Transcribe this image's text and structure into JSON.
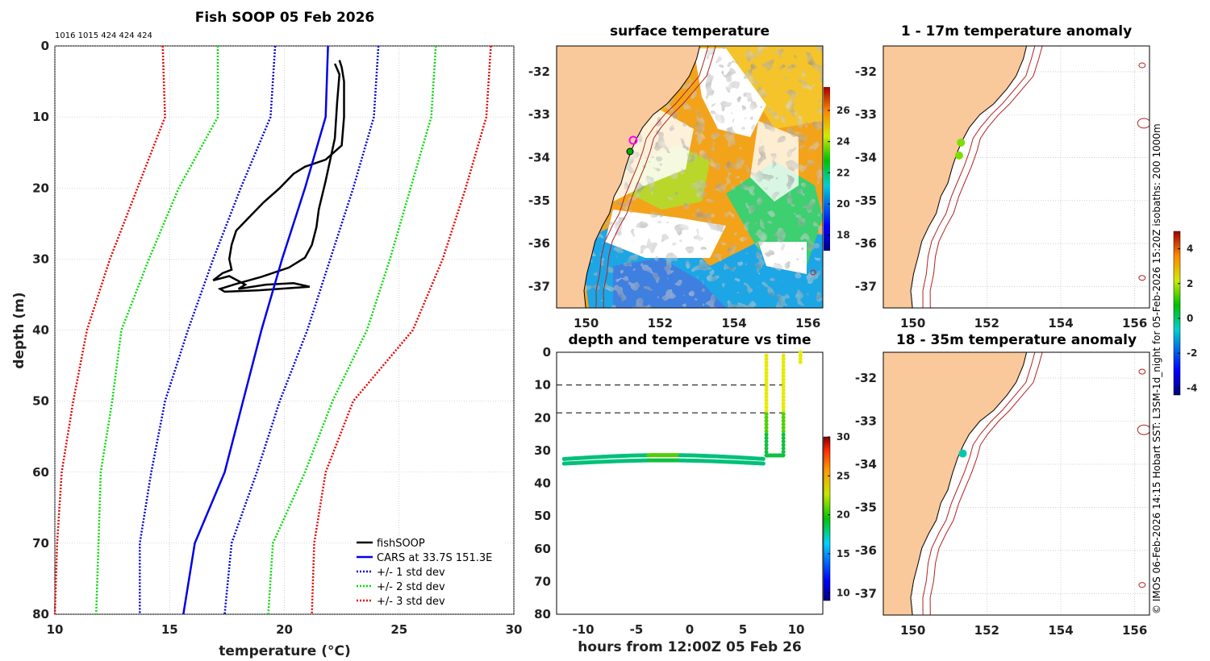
{
  "chart_data": [
    {
      "type": "line",
      "title": "Fish SOOP 05 Feb 2026",
      "subtitle": "1016 1015 424 424 424",
      "xlabel": "temperature (°C)",
      "ylabel": "depth (m)",
      "xlim": [
        10,
        30
      ],
      "ylim": [
        80,
        0
      ],
      "xticks": [
        "10",
        "15",
        "20",
        "25",
        "30"
      ],
      "yticks": [
        "0",
        "10",
        "20",
        "30",
        "40",
        "50",
        "60",
        "70",
        "80"
      ],
      "series": [
        {
          "name": "fishSOOP",
          "color": "#000000",
          "style": "solid",
          "points": [
            [
              22.4,
              2
            ],
            [
              22.5,
              3
            ],
            [
              22.6,
              5
            ],
            [
              22.6,
              10
            ],
            [
              22.5,
              14
            ],
            [
              21.8,
              16
            ],
            [
              20.9,
              17
            ],
            [
              20.4,
              18
            ],
            [
              19.8,
              20
            ],
            [
              19.1,
              22
            ],
            [
              18.5,
              24
            ],
            [
              17.9,
              26
            ],
            [
              17.7,
              28
            ],
            [
              17.6,
              30
            ],
            [
              17.7,
              31.5
            ],
            [
              17.3,
              32
            ],
            [
              16.9,
              33
            ],
            [
              17.6,
              32.4
            ],
            [
              18.3,
              33.6
            ],
            [
              18.0,
              34.2
            ],
            [
              19.2,
              33.6
            ],
            [
              20.4,
              33.4
            ],
            [
              21.1,
              33.9
            ],
            [
              20.2,
              34.1
            ],
            [
              18.9,
              34.4
            ],
            [
              17.4,
              34.6
            ],
            [
              17.2,
              34.2
            ],
            [
              17.9,
              33.5
            ],
            [
              19.0,
              32.5
            ],
            [
              20.2,
              31.2
            ],
            [
              20.9,
              29.8
            ],
            [
              21.2,
              28
            ],
            [
              21.4,
              25.5
            ],
            [
              21.5,
              23
            ],
            [
              21.8,
              19
            ],
            [
              22.0,
              16
            ],
            [
              22.2,
              13
            ],
            [
              22.3,
              8
            ],
            [
              22.4,
              4
            ],
            [
              22.2,
              2.5
            ]
          ]
        },
        {
          "name": "CARS at 33.7S 151.3E",
          "color": "#0000ee",
          "style": "solid",
          "points": [
            [
              21.9,
              0
            ],
            [
              21.8,
              10
            ],
            [
              20.9,
              20
            ],
            [
              19.9,
              30
            ],
            [
              19.0,
              40
            ],
            [
              18.2,
              50
            ],
            [
              17.4,
              60
            ],
            [
              16.1,
              70
            ],
            [
              15.6,
              80
            ]
          ]
        },
        {
          "name": "+/- 1 std dev",
          "color": "#0000dd",
          "style": "dotted",
          "points_low": [
            [
              19.6,
              0
            ],
            [
              19.4,
              10
            ],
            [
              18.1,
              20
            ],
            [
              16.9,
              30
            ],
            [
              15.8,
              40
            ],
            [
              14.8,
              50
            ],
            [
              14.2,
              60
            ],
            [
              13.7,
              70
            ],
            [
              13.7,
              80
            ]
          ],
          "points_high": [
            [
              24.1,
              0
            ],
            [
              23.9,
              10
            ],
            [
              23.0,
              20
            ],
            [
              22.0,
              30
            ],
            [
              21.0,
              40
            ],
            [
              19.8,
              50
            ],
            [
              18.8,
              60
            ],
            [
              17.7,
              70
            ],
            [
              17.4,
              80
            ]
          ]
        },
        {
          "name": "+/- 2 std dev",
          "color": "#00dd00",
          "style": "dotted",
          "points_low": [
            [
              17.1,
              0
            ],
            [
              17.1,
              10
            ],
            [
              15.4,
              20
            ],
            [
              14.1,
              30
            ],
            [
              12.9,
              40
            ],
            [
              12.5,
              50
            ],
            [
              12.0,
              60
            ],
            [
              11.9,
              70
            ],
            [
              11.8,
              80
            ]
          ],
          "points_high": [
            [
              26.6,
              0
            ],
            [
              26.4,
              10
            ],
            [
              25.5,
              20
            ],
            [
              24.6,
              30
            ],
            [
              23.6,
              40
            ],
            [
              22.1,
              50
            ],
            [
              20.9,
              60
            ],
            [
              19.5,
              70
            ],
            [
              19.3,
              80
            ]
          ]
        },
        {
          "name": "+/- 3 std dev",
          "color": "#ee0000",
          "style": "dotted",
          "points_low": [
            [
              14.7,
              0
            ],
            [
              14.8,
              10
            ],
            [
              13.6,
              20
            ],
            [
              12.4,
              30
            ],
            [
              11.4,
              40
            ],
            [
              10.8,
              50
            ],
            [
              10.3,
              60
            ],
            [
              10.1,
              70
            ],
            [
              10.0,
              80
            ]
          ],
          "points_high": [
            [
              29.0,
              0
            ],
            [
              28.8,
              10
            ],
            [
              27.9,
              20
            ],
            [
              26.9,
              30
            ],
            [
              25.6,
              40
            ],
            [
              23.0,
              50
            ],
            [
              21.8,
              60
            ],
            [
              21.3,
              70
            ],
            [
              21.2,
              80
            ]
          ]
        }
      ]
    },
    {
      "type": "heatmap",
      "title": "surface temperature",
      "xlim": [
        149.2,
        156.4
      ],
      "ylim": [
        -37.5,
        -31.4
      ],
      "xticks": [
        "150",
        "152",
        "154",
        "156"
      ],
      "yticks": [
        "-32",
        "-33",
        "-34",
        "-35",
        "-36",
        "-37"
      ],
      "colorbar": {
        "min": 17,
        "max": 27.5,
        "ticks": [
          "18",
          "20",
          "22",
          "24",
          "26"
        ]
      }
    },
    {
      "type": "scatter",
      "title": "depth and temperature vs time",
      "xlabel": "hours from 12:00Z 05 Feb 26",
      "xlim": [
        -12.5,
        12.5
      ],
      "ylim": [
        80,
        0
      ],
      "xticks": [
        "-10",
        "-5",
        "0",
        "5",
        "10"
      ],
      "yticks": [
        "0",
        "10",
        "20",
        "30",
        "40",
        "50",
        "60",
        "70",
        "80"
      ],
      "hlines": [
        10,
        18.5
      ],
      "colorbar": {
        "min": 9,
        "max": 30,
        "ticks": [
          "10",
          "15",
          "20",
          "25",
          "30"
        ]
      }
    },
    {
      "type": "scatter",
      "title": "1 - 17m temperature anomaly",
      "xlim": [
        149.2,
        156.4
      ],
      "ylim": [
        -37.5,
        -31.4
      ],
      "xticks": [
        "150",
        "152",
        "154",
        "156"
      ],
      "yticks": [
        "-32",
        "-33",
        "-34",
        "-35",
        "-36",
        "-37"
      ],
      "points": [
        [
          151.3,
          -33.65,
          1.3
        ],
        [
          151.25,
          -33.95,
          1.0
        ]
      ],
      "colorbar": {
        "min": -4.4,
        "max": 5,
        "ticks": [
          "-4",
          "-2",
          "0",
          "2",
          "4"
        ]
      }
    },
    {
      "type": "scatter",
      "title": "18 - 35m temperature anomaly",
      "xlim": [
        149.2,
        156.4
      ],
      "ylim": [
        -37.5,
        -31.4
      ],
      "xticks": [
        "150",
        "152",
        "154",
        "156"
      ],
      "yticks": [
        "-32",
        "-33",
        "-34",
        "-35",
        "-36",
        "-37"
      ],
      "points": [
        [
          151.35,
          -33.75,
          -1.0
        ]
      ]
    }
  ],
  "side_note": "© IMOS 06-Feb-2026 14:15 Hobart SST: L3SM-1d_night for 05-Feb-2026 15:20Z isobaths: 200  1000m",
  "colors": {
    "land": "#f9c89b",
    "isobath": "#b22222",
    "grid": "#b0b0b0"
  }
}
